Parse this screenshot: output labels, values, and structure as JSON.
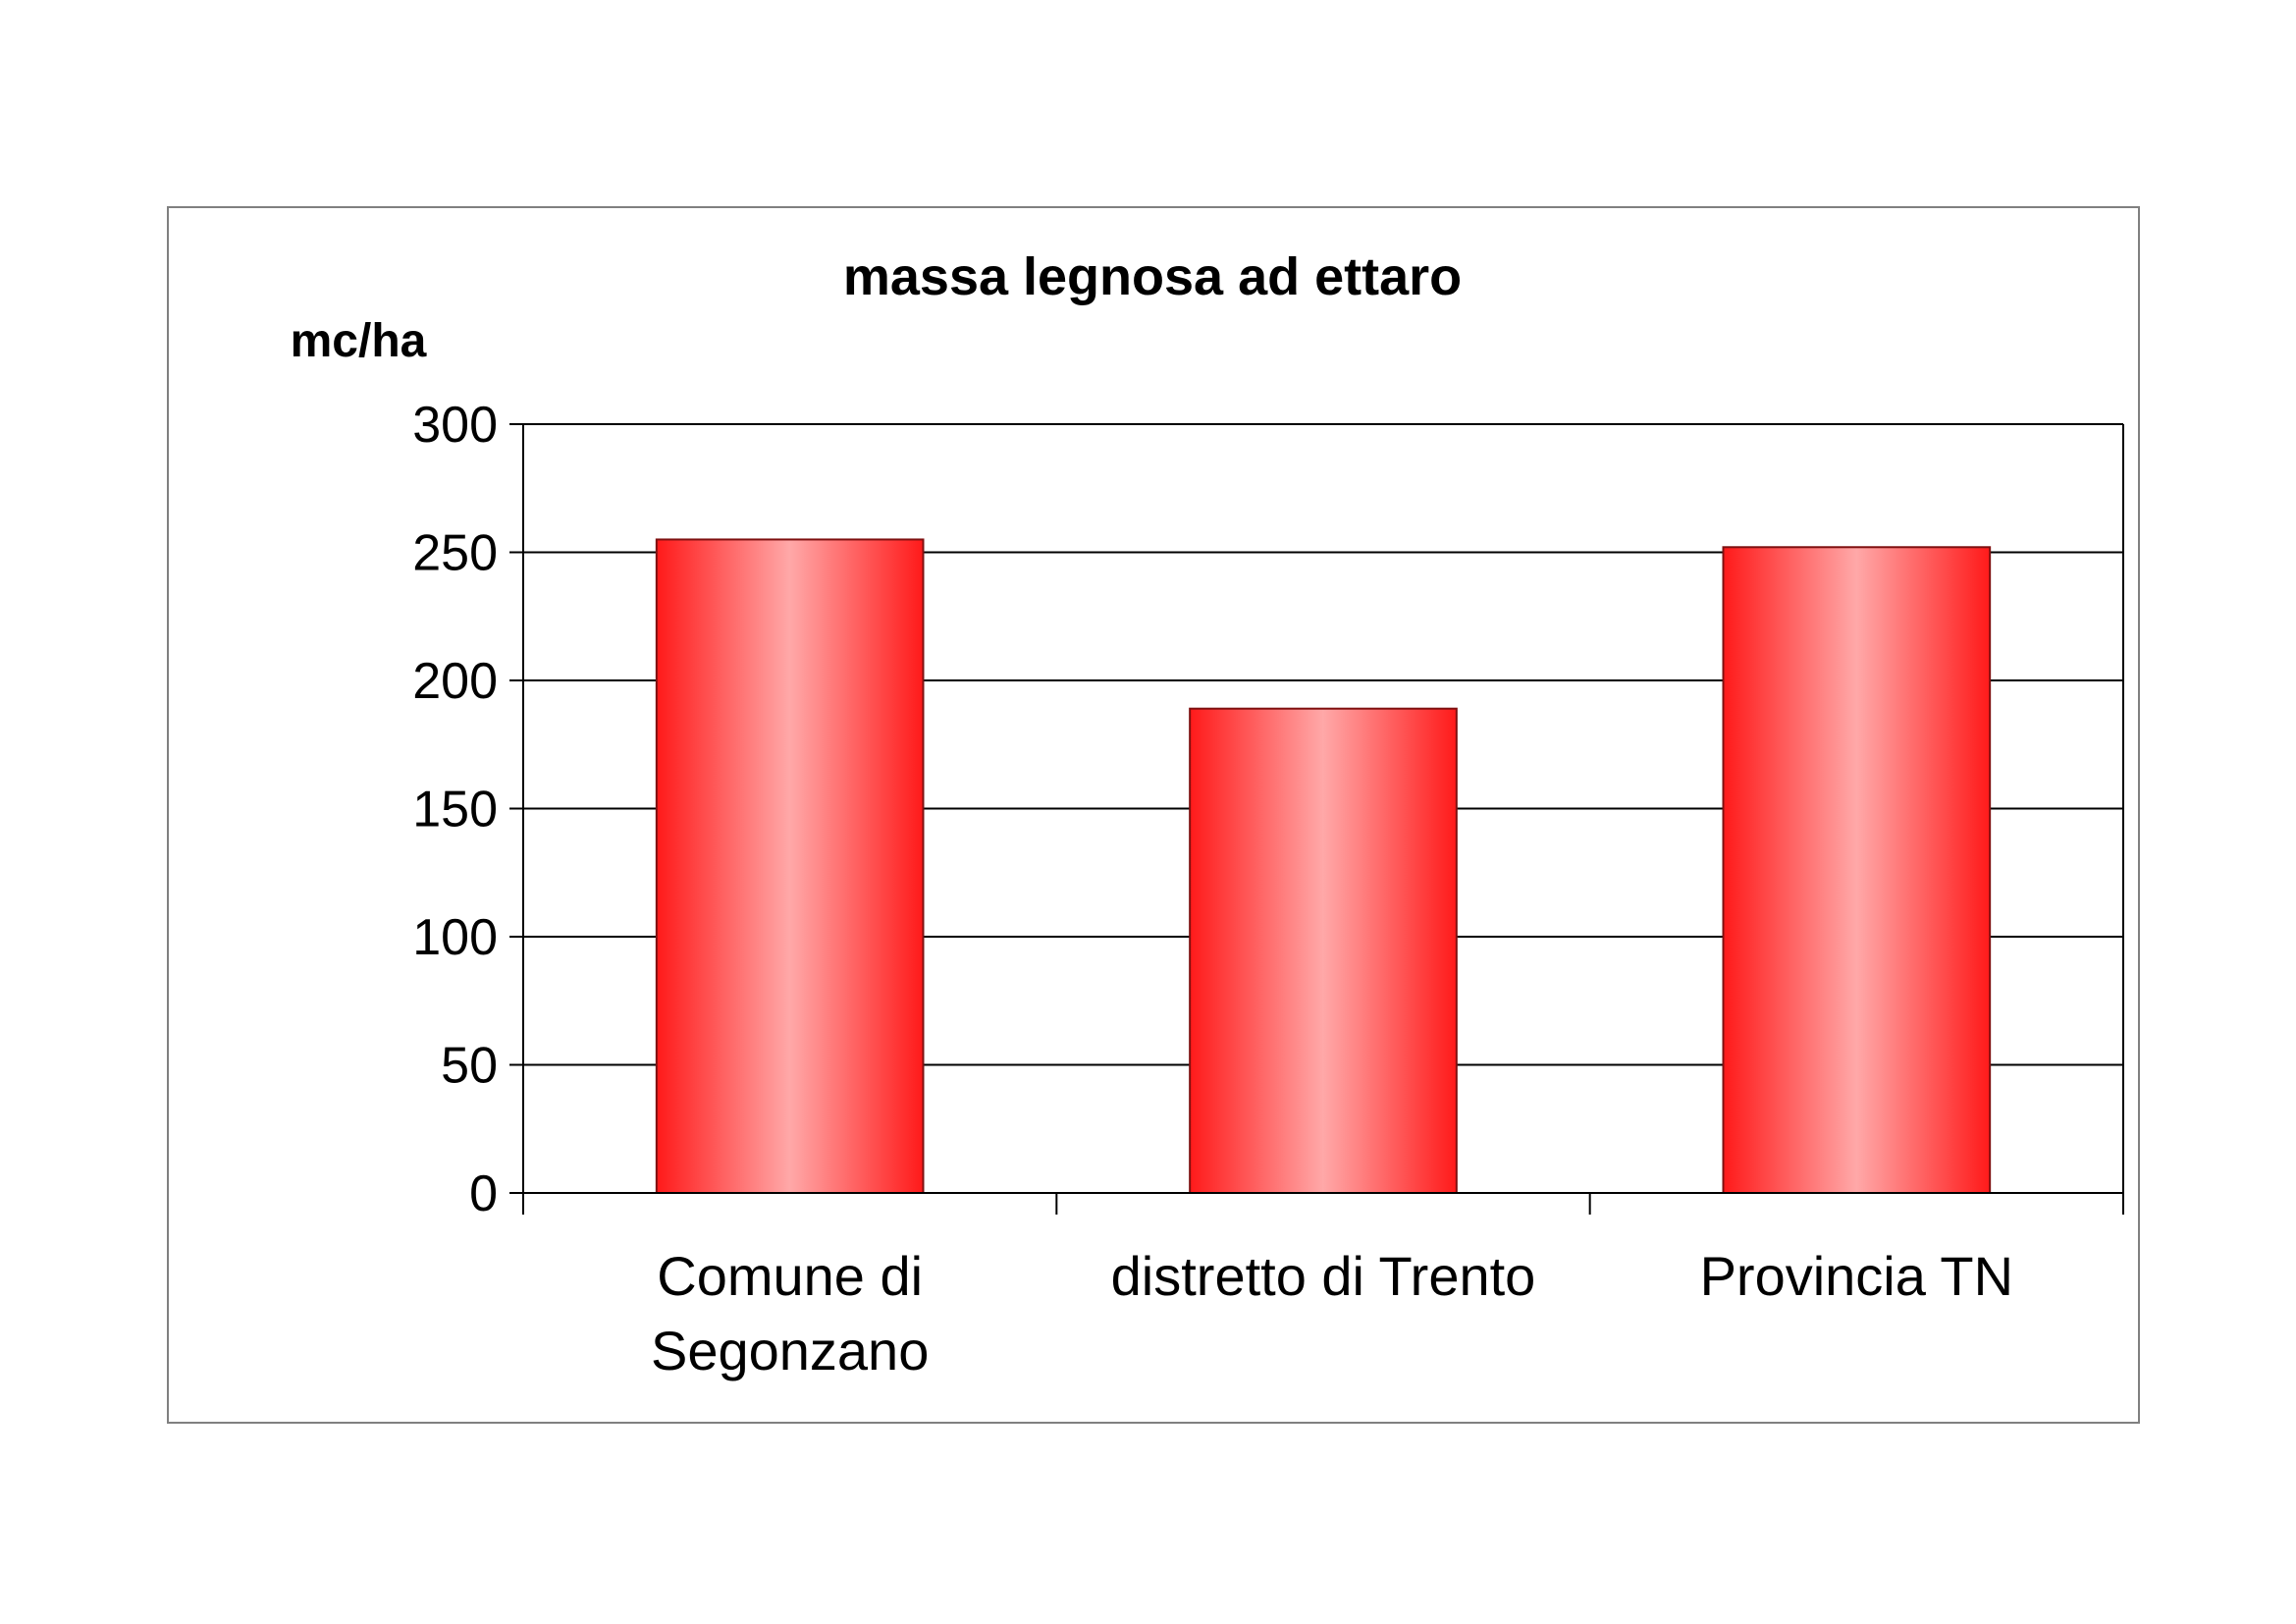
{
  "chart_data": {
    "type": "bar",
    "title": "massa legnosa ad ettaro",
    "ylabel": "mc/ha",
    "xlabel": "",
    "categories": [
      [
        "Comune di",
        "Segonzano"
      ],
      [
        "distretto di Trento"
      ],
      [
        "Provincia TN"
      ]
    ],
    "values": [
      255,
      189,
      252
    ],
    "ylim": [
      0,
      300
    ],
    "yticks": [
      0,
      50,
      100,
      150,
      200,
      250,
      300
    ],
    "grid": true,
    "legend": "none",
    "colors": {
      "bar_edge": "#ff1a1a",
      "bar_center": "#ffa8a8",
      "bar_outline": "#7f1010",
      "grid": "#000000"
    }
  }
}
